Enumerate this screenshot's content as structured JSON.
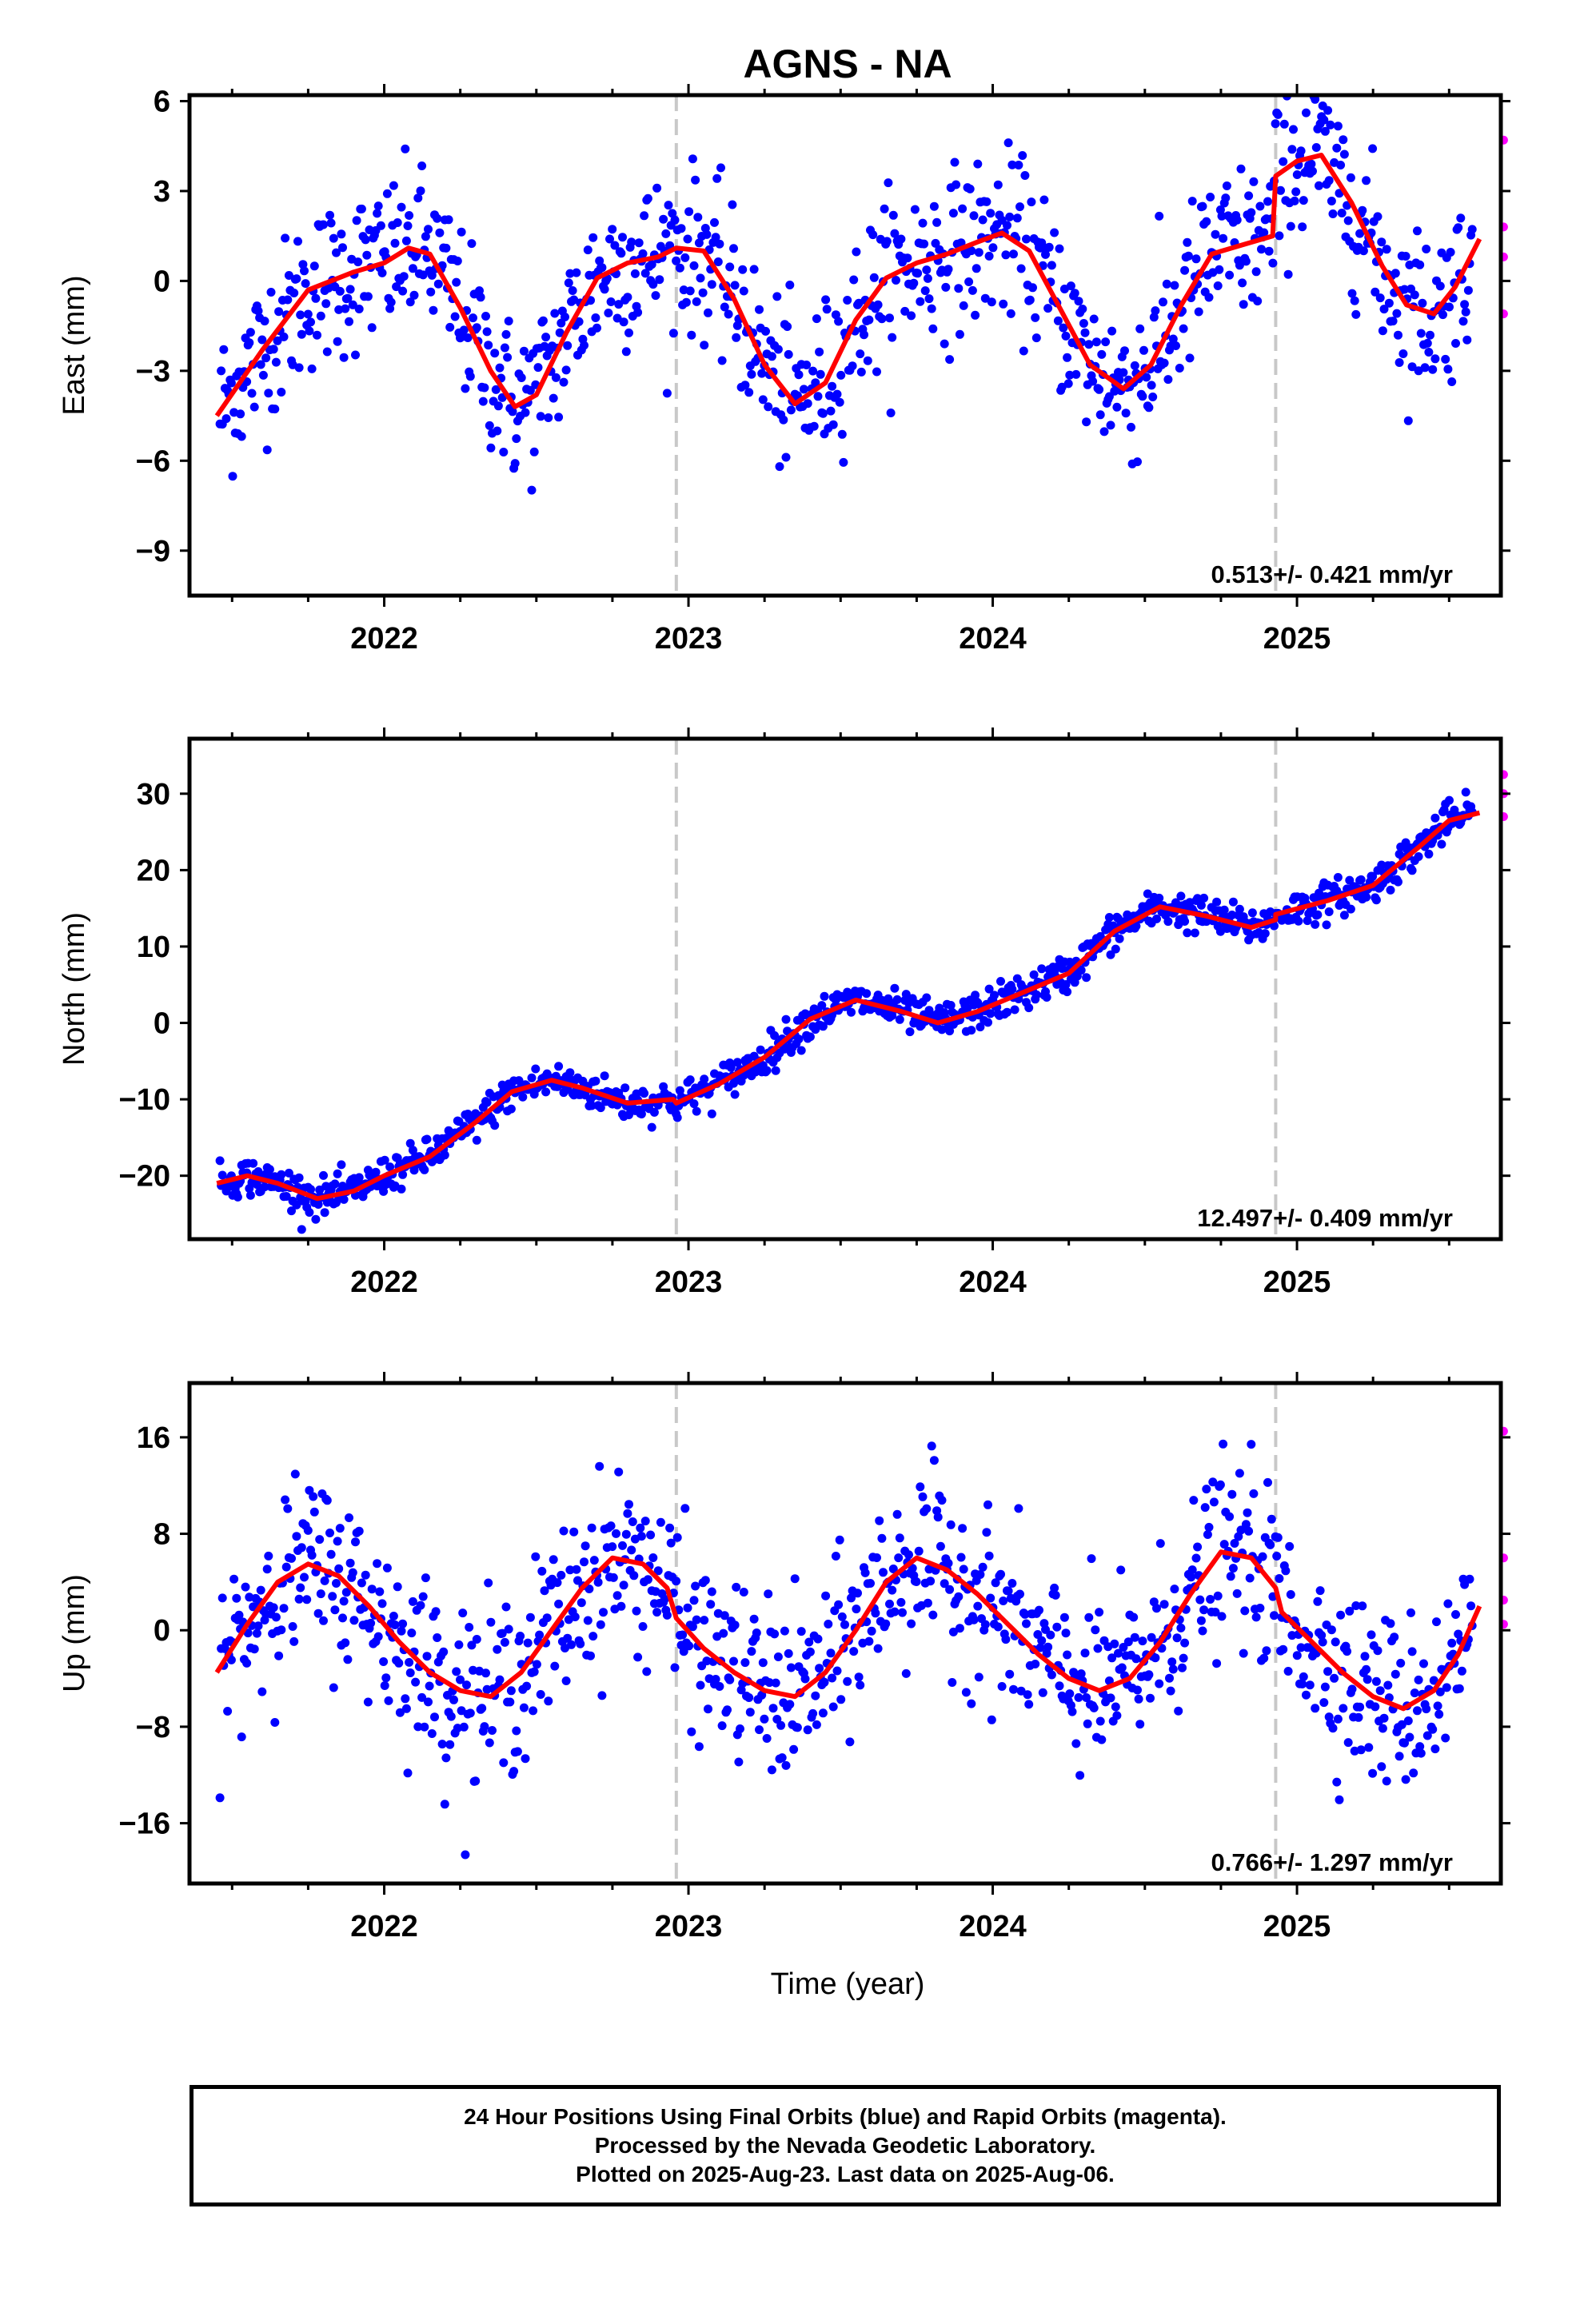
{
  "title": "AGNS - NA",
  "xlabel": "Time (year)",
  "colors": {
    "final": "#0000ff",
    "rapid": "#ff00ff",
    "fit": "#ff0000",
    "break": "#c8c8c8"
  },
  "caption": [
    "24 Hour Positions Using Final Orbits (blue) and Rapid Orbits (magenta).",
    "Processed by the Nevada Geodetic Laboratory.",
    "Plotted on 2025-Aug-23. Last data on 2025-Aug-06."
  ],
  "chart_data": [
    {
      "type": "scatter",
      "ylabel": "East (mm)",
      "rate_label": "0.513+/- 0.421 mm/yr",
      "xlim": [
        2021.36,
        2025.67
      ],
      "ylim": [
        -10.5,
        6.2
      ],
      "yticks": [
        6,
        3,
        0,
        -3,
        -6,
        -9
      ],
      "xticks": [
        2022,
        2023,
        2024,
        2025
      ],
      "breaks": [
        2022.96,
        2024.93
      ],
      "trend_fit": [
        [
          2021.45,
          -4.5
        ],
        [
          2021.6,
          -2.3
        ],
        [
          2021.75,
          -0.3
        ],
        [
          2021.9,
          0.3
        ],
        [
          2022.0,
          0.6
        ],
        [
          2022.08,
          1.1
        ],
        [
          2022.15,
          0.9
        ],
        [
          2022.25,
          -0.9
        ],
        [
          2022.35,
          -3.0
        ],
        [
          2022.43,
          -4.2
        ],
        [
          2022.5,
          -3.8
        ],
        [
          2022.6,
          -1.7
        ],
        [
          2022.7,
          0.1
        ],
        [
          2022.8,
          0.6
        ],
        [
          2022.9,
          0.8
        ],
        [
          2022.96,
          1.1
        ],
        [
          2023.05,
          1.0
        ],
        [
          2023.15,
          -0.6
        ],
        [
          2023.25,
          -2.8
        ],
        [
          2023.35,
          -4.1
        ],
        [
          2023.45,
          -3.4
        ],
        [
          2023.55,
          -1.3
        ],
        [
          2023.65,
          0.1
        ],
        [
          2023.75,
          0.6
        ],
        [
          2023.85,
          0.9
        ],
        [
          2023.95,
          1.3
        ],
        [
          2024.03,
          1.6
        ],
        [
          2024.12,
          1.0
        ],
        [
          2024.22,
          -0.9
        ],
        [
          2024.32,
          -2.8
        ],
        [
          2024.43,
          -3.6
        ],
        [
          2024.52,
          -2.8
        ],
        [
          2024.62,
          -0.8
        ],
        [
          2024.72,
          0.9
        ],
        [
          2024.82,
          1.2
        ],
        [
          2024.92,
          1.5
        ],
        [
          2024.93,
          3.5
        ],
        [
          2025.0,
          4.0
        ],
        [
          2025.08,
          4.2
        ],
        [
          2025.18,
          2.6
        ],
        [
          2025.28,
          0.5
        ],
        [
          2025.36,
          -0.8
        ],
        [
          2025.45,
          -1.1
        ],
        [
          2025.52,
          -0.2
        ],
        [
          2025.6,
          1.4
        ]
      ],
      "rapid": [
        [
          2025.6,
          4.7
        ],
        [
          2025.6,
          1.8
        ],
        [
          2025.6,
          0.8
        ],
        [
          2025.6,
          -1.1
        ]
      ]
    },
    {
      "type": "scatter",
      "ylabel": "North (mm)",
      "rate_label": "12.497+/- 0.409 mm/yr",
      "xlim": [
        2021.36,
        2025.67
      ],
      "ylim": [
        -28.3,
        37.2
      ],
      "yticks": [
        30,
        20,
        10,
        0,
        -10,
        -20
      ],
      "xticks": [
        2022,
        2023,
        2024,
        2025
      ],
      "breaks": [
        2022.96,
        2024.93
      ],
      "trend_fit": [
        [
          2021.45,
          -21.0
        ],
        [
          2021.55,
          -20.0
        ],
        [
          2021.65,
          -21.0
        ],
        [
          2021.78,
          -23.0
        ],
        [
          2021.9,
          -22.0
        ],
        [
          2022.0,
          -20.0
        ],
        [
          2022.15,
          -17.5
        ],
        [
          2022.3,
          -13.0
        ],
        [
          2022.42,
          -9.0
        ],
        [
          2022.55,
          -7.5
        ],
        [
          2022.65,
          -8.5
        ],
        [
          2022.8,
          -10.5
        ],
        [
          2022.95,
          -10.0
        ],
        [
          2022.96,
          -10.5
        ],
        [
          2023.1,
          -8.0
        ],
        [
          2023.25,
          -4.5
        ],
        [
          2023.4,
          0.5
        ],
        [
          2023.55,
          3.0
        ],
        [
          2023.7,
          1.5
        ],
        [
          2023.82,
          0.0
        ],
        [
          2023.95,
          1.5
        ],
        [
          2024.1,
          4.0
        ],
        [
          2024.25,
          6.5
        ],
        [
          2024.4,
          12.0
        ],
        [
          2024.55,
          15.2
        ],
        [
          2024.7,
          14.0
        ],
        [
          2024.85,
          12.5
        ],
        [
          2024.93,
          13.5
        ],
        [
          2024.93,
          14.2
        ],
        [
          2025.1,
          16.0
        ],
        [
          2025.25,
          18.0
        ],
        [
          2025.4,
          23.0
        ],
        [
          2025.5,
          26.5
        ],
        [
          2025.6,
          27.5
        ]
      ],
      "rapid": [
        [
          2025.6,
          32.5
        ],
        [
          2025.6,
          30.0
        ],
        [
          2025.6,
          27.0
        ]
      ]
    },
    {
      "type": "scatter",
      "ylabel": "Up (mm)",
      "rate_label": "0.766+/- 1.297 mm/yr",
      "xlim": [
        2021.36,
        2025.67
      ],
      "ylim": [
        -21.0,
        20.5
      ],
      "yticks": [
        16,
        8,
        0,
        -8,
        -16
      ],
      "xticks": [
        2022,
        2023,
        2024,
        2025
      ],
      "breaks": [
        2022.96,
        2024.93
      ],
      "trend_fit": [
        [
          2021.45,
          -3.5
        ],
        [
          2021.55,
          0.5
        ],
        [
          2021.65,
          4.0
        ],
        [
          2021.75,
          5.5
        ],
        [
          2021.85,
          4.5
        ],
        [
          2021.95,
          2.0
        ],
        [
          2022.05,
          -1.0
        ],
        [
          2022.15,
          -3.5
        ],
        [
          2022.25,
          -5.0
        ],
        [
          2022.35,
          -5.5
        ],
        [
          2022.45,
          -3.5
        ],
        [
          2022.55,
          0.0
        ],
        [
          2022.65,
          3.5
        ],
        [
          2022.75,
          6.0
        ],
        [
          2022.85,
          5.5
        ],
        [
          2022.93,
          3.5
        ],
        [
          2022.96,
          1.0
        ],
        [
          2023.05,
          -1.5
        ],
        [
          2023.15,
          -3.5
        ],
        [
          2023.25,
          -5.0
        ],
        [
          2023.35,
          -5.5
        ],
        [
          2023.45,
          -3.5
        ],
        [
          2023.55,
          0.0
        ],
        [
          2023.65,
          4.0
        ],
        [
          2023.75,
          6.0
        ],
        [
          2023.85,
          5.0
        ],
        [
          2023.95,
          3.0
        ],
        [
          2024.05,
          0.5
        ],
        [
          2024.15,
          -2.0
        ],
        [
          2024.25,
          -4.0
        ],
        [
          2024.35,
          -5.0
        ],
        [
          2024.45,
          -4.0
        ],
        [
          2024.55,
          -1.0
        ],
        [
          2024.65,
          3.0
        ],
        [
          2024.75,
          6.5
        ],
        [
          2024.85,
          6.0
        ],
        [
          2024.93,
          3.5
        ],
        [
          2024.95,
          1.5
        ],
        [
          2025.05,
          -1.0
        ],
        [
          2025.15,
          -3.5
        ],
        [
          2025.25,
          -5.5
        ],
        [
          2025.35,
          -6.5
        ],
        [
          2025.45,
          -5.0
        ],
        [
          2025.53,
          -2.0
        ],
        [
          2025.6,
          2.0
        ]
      ],
      "rapid": [
        [
          2025.6,
          16.5
        ],
        [
          2025.6,
          6.0
        ],
        [
          2025.6,
          2.5
        ],
        [
          2025.6,
          0.5
        ]
      ]
    }
  ]
}
